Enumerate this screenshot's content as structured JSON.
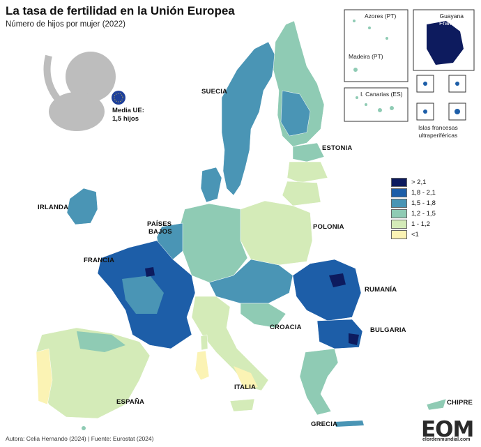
{
  "title": "La tasa de fertilidad en la Unión Europea",
  "subtitle": "Número de hijos por mujer (2022)",
  "media": {
    "line1": "Media UE:",
    "line2": "1,5 hijos"
  },
  "legend": [
    {
      "label": "> 2,1",
      "color": "#0d1b5e"
    },
    {
      "label": "1,8 - 2,1",
      "color": "#1d5ea8"
    },
    {
      "label": "1,5 - 1,8",
      "color": "#4a95b5"
    },
    {
      "label": "1,2 - 1,5",
      "color": "#8fcbb4"
    },
    {
      "label": "1 - 1,2",
      "color": "#d4ebb8"
    },
    {
      "label": "<1",
      "color": "#fbf3b4"
    }
  ],
  "countries": {
    "suecia": "SUECIA",
    "estonia": "ESTONIA",
    "irlanda": "IRLANDA",
    "paises_bajos_1": "PAÍSES",
    "paises_bajos_2": "BAJOS",
    "polonia": "POLONIA",
    "francia": "FRANCIA",
    "rumania": "RUMANÍA",
    "croacia": "CROACIA",
    "bulgaria": "BULGARIA",
    "italia": "ITALIA",
    "espana": "ESPAÑA",
    "chipre": "CHIPRE",
    "grecia": "GRECIA"
  },
  "insets": {
    "azores": "Azores (PT)",
    "madeira": "Madeira (PT)",
    "canarias": "I. Canarias (ES)",
    "guayana_1": "Guayana",
    "guayana_2": "Francesa",
    "islas_1": "Islas francesas",
    "islas_2": "ultraperiféricas"
  },
  "footer": "Autora: Celia Hernando (2024) | Fuente: Eurostat (2024)",
  "logo": {
    "main": "EOM",
    "sub": "elordenmundial.com"
  }
}
